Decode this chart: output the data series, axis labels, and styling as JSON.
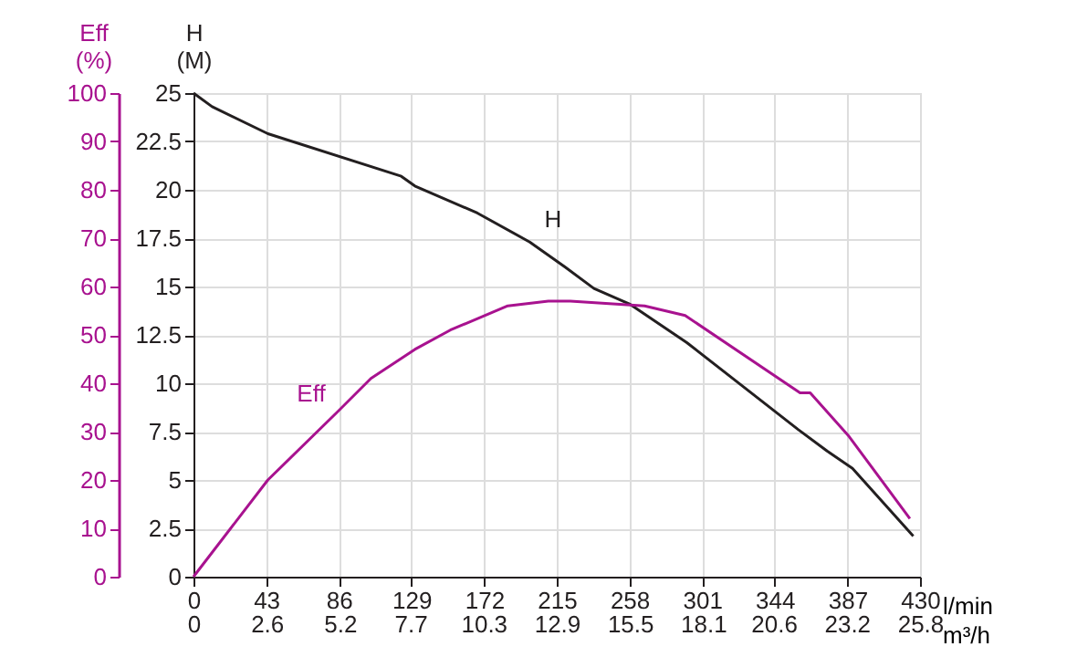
{
  "chart_data": {
    "type": "line",
    "xlabel": "l/min",
    "x2label": "m³/h",
    "ylabel": "H\n(M)",
    "y2label": "Eff\n(%)",
    "xlim": [
      0,
      430
    ],
    "xticks": [
      0,
      43,
      86,
      129,
      172,
      215,
      258,
      301,
      344,
      387,
      430
    ],
    "x2lim": [
      0,
      25.8
    ],
    "x2ticks": [
      0,
      2.6,
      5.2,
      7.7,
      10.3,
      12.9,
      15.5,
      18.1,
      20.6,
      23.2,
      25.8
    ],
    "ylim": [
      0,
      25
    ],
    "yticks": [
      0,
      2.5,
      5,
      7.5,
      10,
      12.5,
      15,
      17.5,
      20,
      22.5,
      25
    ],
    "y2lim": [
      0,
      100
    ],
    "y2ticks": [
      0,
      10,
      20,
      30,
      40,
      50,
      60,
      70,
      80,
      90,
      100
    ],
    "grid": true,
    "marker": "none",
    "line_style": "solid",
    "series": [
      {
        "name": "H",
        "color": "#231f20",
        "x": [
          0,
          11,
          44,
          123,
          131,
          168,
          199,
          220,
          237,
          258,
          292,
          358,
          375,
          390,
          426
        ],
        "values": [
          25,
          24.3,
          22.9,
          20.7,
          20.2,
          18.8,
          17.3,
          16.0,
          14.9,
          14.1,
          12.1,
          7.6,
          6.5,
          5.6,
          2.1
        ]
      },
      {
        "name": "Eff",
        "color": "#a8128f",
        "axis": "y2",
        "x": [
          0,
          44,
          85,
          105,
          131,
          152,
          186,
          210,
          223,
          267,
          291,
          359,
          365,
          388,
          424
        ],
        "values": [
          0,
          20,
          34,
          41,
          47,
          51,
          56,
          57,
          57,
          56,
          54,
          38,
          38,
          29,
          12
        ]
      }
    ]
  }
}
